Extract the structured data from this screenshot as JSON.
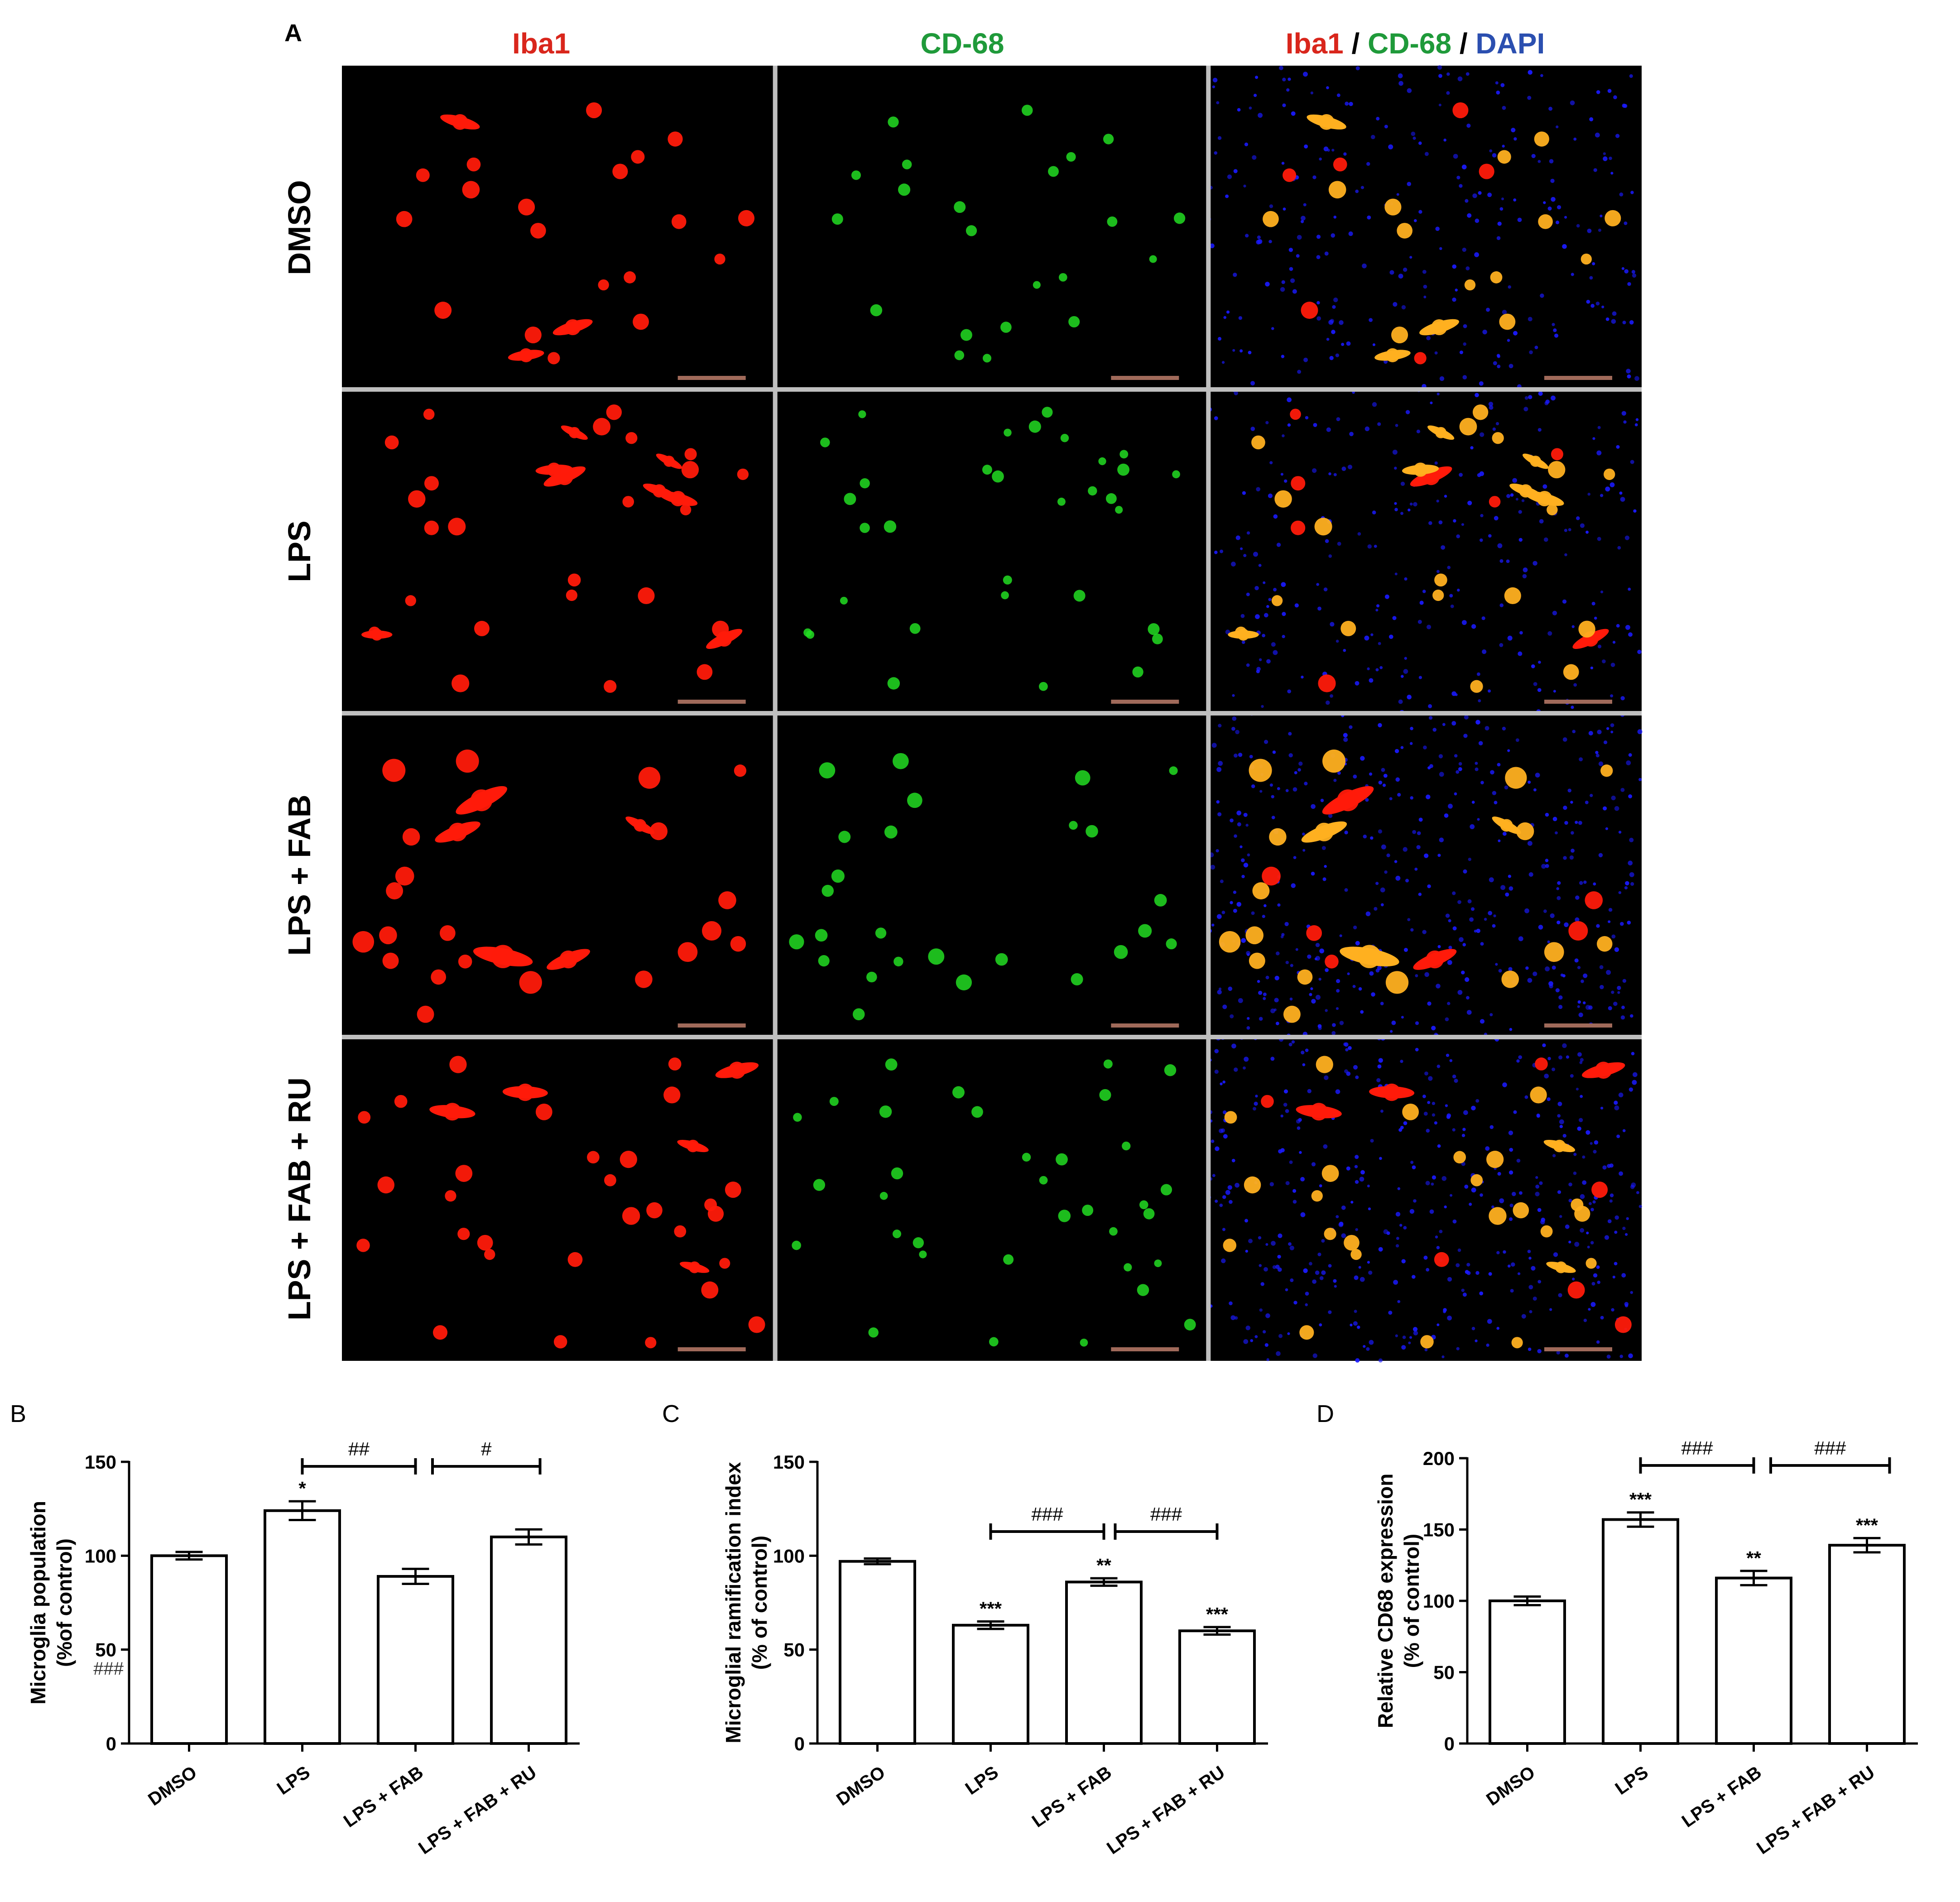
{
  "panel_a": {
    "letter": "A",
    "columns": [
      {
        "id": "iba1",
        "parts": [
          {
            "text": "Iba1",
            "color": "#d9261c"
          }
        ]
      },
      {
        "id": "cd68",
        "parts": [
          {
            "text": "CD-68",
            "color": "#1f9a3a"
          }
        ]
      },
      {
        "id": "merge",
        "parts": [
          {
            "text": "Iba1",
            "color": "#d9261c"
          },
          {
            "text": " / ",
            "color": "#000000"
          },
          {
            "text": "CD-68",
            "color": "#1f9a3a"
          },
          {
            "text": " / ",
            "color": "#000000"
          },
          {
            "text": "DAPI",
            "color": "#2b4fb0"
          }
        ]
      }
    ],
    "rows": [
      "DMSO",
      "LPS",
      "LPS + FAB",
      "LPS + FAB + RU"
    ],
    "colors": {
      "iba1": "#ff1a0a",
      "cd68": "#22dd22",
      "dapi": "#1a1aff",
      "merge": "#ffb020",
      "background": "#000000",
      "divider": "#bfbfbf"
    }
  },
  "chart_data": [
    {
      "panel": "B",
      "type": "bar",
      "categories": [
        "DMSO",
        "LPS",
        "LPS + FAB",
        "LPS + FAB + RU"
      ],
      "values": [
        100,
        124,
        89,
        110
      ],
      "errors": [
        2,
        5,
        4,
        4
      ],
      "ylabel": [
        "Microglia population",
        "(%of control)"
      ],
      "ylim": [
        0,
        150
      ],
      "yticks": [
        0,
        50,
        100,
        150
      ],
      "stars": [
        "",
        "*",
        "",
        ""
      ],
      "brackets": [
        {
          "from": 1,
          "to": 2,
          "label": "##"
        },
        {
          "from": 2.15,
          "to": 3.1,
          "label": "#"
        }
      ],
      "extra_annotations": [
        {
          "text": "###",
          "y": 40
        }
      ]
    },
    {
      "panel": "C",
      "type": "bar",
      "categories": [
        "DMSO",
        "LPS",
        "LPS + FAB",
        "LPS + FAB + RU"
      ],
      "values": [
        97,
        63,
        86,
        60
      ],
      "errors": [
        1.5,
        2,
        2,
        2
      ],
      "ylabel": [
        "Microglial ramification index",
        "(% of control)"
      ],
      "ylim": [
        0,
        150
      ],
      "yticks": [
        0,
        50,
        100,
        150
      ],
      "stars": [
        "",
        "***",
        "**",
        "***"
      ],
      "brackets": [
        {
          "from": 1,
          "to": 2,
          "label": "###"
        },
        {
          "from": 2.1,
          "to": 3,
          "label": "###"
        }
      ],
      "extra_annotations": []
    },
    {
      "panel": "D",
      "type": "bar",
      "categories": [
        "DMSO",
        "LPS",
        "LPS + FAB",
        "LPS + FAB + RU"
      ],
      "values": [
        100,
        157,
        116,
        139
      ],
      "errors": [
        3,
        5,
        5,
        5
      ],
      "ylabel": [
        "Relative CD68 expression",
        "(% of control)"
      ],
      "ylim": [
        0,
        200
      ],
      "yticks": [
        0,
        50,
        100,
        150,
        200
      ],
      "stars": [
        "",
        "***",
        "**",
        "***"
      ],
      "brackets": [
        {
          "from": 1,
          "to": 2,
          "label": "###"
        },
        {
          "from": 2.15,
          "to": 3.2,
          "label": "###"
        }
      ],
      "extra_annotations": []
    }
  ]
}
